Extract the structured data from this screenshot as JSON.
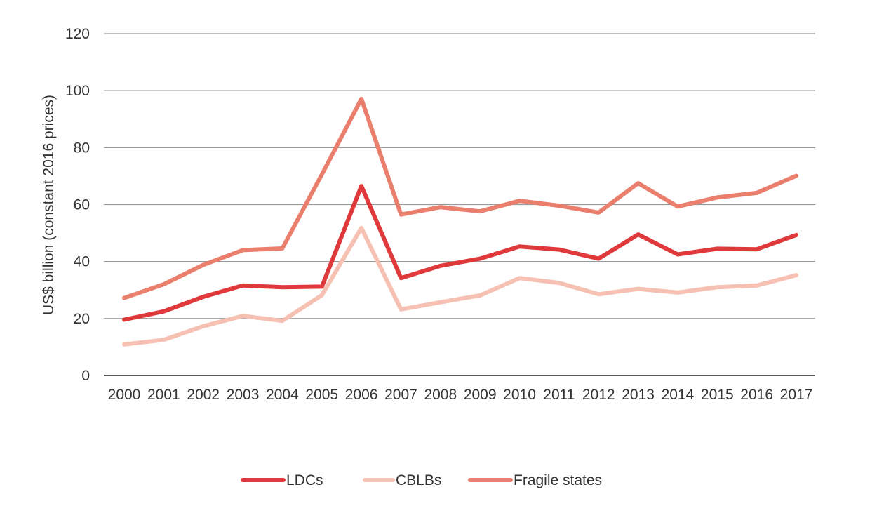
{
  "chart_data": {
    "type": "line",
    "title": "",
    "xlabel": "",
    "ylabel": "US$ billion (constant 2016 prices)",
    "ylim": [
      0,
      120
    ],
    "yticks": [
      0,
      20,
      40,
      60,
      80,
      100,
      120
    ],
    "grid": true,
    "legend_position": "bottom",
    "categories": [
      "2000",
      "2001",
      "2002",
      "2003",
      "2004",
      "2005",
      "2006",
      "2007",
      "2008",
      "2009",
      "2010",
      "2011",
      "2012",
      "2013",
      "2014",
      "2015",
      "2016",
      "2017"
    ],
    "series": [
      {
        "name": "LDCs",
        "color": "#e0393b",
        "values": [
          19.6,
          22.5,
          27.6,
          31.6,
          31.0,
          31.2,
          66.5,
          34.2,
          38.5,
          41.0,
          45.3,
          44.2,
          41.0,
          49.5,
          42.5,
          44.5,
          44.3,
          49.3
        ]
      },
      {
        "name": "CBLBs",
        "color": "#f6c0b2",
        "values": [
          10.9,
          12.5,
          17.3,
          20.9,
          19.2,
          28.2,
          51.8,
          23.2,
          25.7,
          28.1,
          34.2,
          32.5,
          28.5,
          30.4,
          29.1,
          31.0,
          31.6,
          35.2
        ]
      },
      {
        "name": "Fragile states",
        "color": "#ea7f6e",
        "values": [
          27.2,
          32.0,
          38.8,
          44.0,
          44.6,
          70.6,
          97.1,
          56.5,
          59.1,
          57.6,
          61.3,
          59.6,
          57.2,
          67.5,
          59.3,
          62.5,
          64.1,
          70.1
        ]
      }
    ]
  }
}
